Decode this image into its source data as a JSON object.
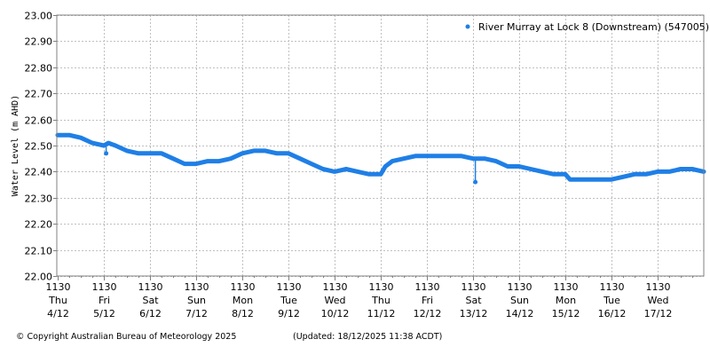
{
  "chart_data": {
    "type": "scatter",
    "title": "",
    "xlabel": "",
    "ylabel": "Water Level (m AHD)",
    "ylim": [
      22.0,
      23.0
    ],
    "yticks": [
      "23.00",
      "22.90",
      "22.80",
      "22.70",
      "22.60",
      "22.50",
      "22.40",
      "22.30",
      "22.20",
      "22.10",
      "22.00"
    ],
    "grid": true,
    "legend_position": "top-right",
    "x_ticks": [
      {
        "time": "1130",
        "day": "Thu",
        "date": "4/12"
      },
      {
        "time": "1130",
        "day": "Fri",
        "date": "5/12"
      },
      {
        "time": "1130",
        "day": "Sat",
        "date": "6/12"
      },
      {
        "time": "1130",
        "day": "Sun",
        "date": "7/12"
      },
      {
        "time": "1130",
        "day": "Mon",
        "date": "8/12"
      },
      {
        "time": "1130",
        "day": "Tue",
        "date": "9/12"
      },
      {
        "time": "1130",
        "day": "Wed",
        "date": "10/12"
      },
      {
        "time": "1130",
        "day": "Thu",
        "date": "11/12"
      },
      {
        "time": "1130",
        "day": "Fri",
        "date": "12/12"
      },
      {
        "time": "1130",
        "day": "Sat",
        "date": "13/12"
      },
      {
        "time": "1130",
        "day": "Sun",
        "date": "14/12"
      },
      {
        "time": "1130",
        "day": "Mon",
        "date": "15/12"
      },
      {
        "time": "1130",
        "day": "Tue",
        "date": "16/12"
      },
      {
        "time": "1130",
        "day": "Wed",
        "date": "17/12"
      }
    ],
    "series": [
      {
        "name": "River Murray at Lock 8 (Downstream) (547005)",
        "color": "#1f7fe6",
        "x_days": [
          0.0,
          0.25,
          0.5,
          0.75,
          1.0,
          1.1,
          1.25,
          1.5,
          1.75,
          2.0,
          2.25,
          2.5,
          2.75,
          3.0,
          3.25,
          3.5,
          3.75,
          4.0,
          4.25,
          4.5,
          4.75,
          5.0,
          5.25,
          5.5,
          5.75,
          6.0,
          6.25,
          6.5,
          6.75,
          7.0,
          7.1,
          7.25,
          7.5,
          7.75,
          8.0,
          8.25,
          8.5,
          8.75,
          9.0,
          9.05,
          9.25,
          9.5,
          9.75,
          10.0,
          10.25,
          10.5,
          10.75,
          11.0,
          11.1,
          11.25,
          11.5,
          11.75,
          12.0,
          12.25,
          12.5,
          12.75,
          13.0,
          13.25,
          13.5,
          13.75,
          14.0
        ],
        "values": [
          22.54,
          22.54,
          22.53,
          22.51,
          22.5,
          22.51,
          22.5,
          22.48,
          22.47,
          22.47,
          22.47,
          22.45,
          22.43,
          22.43,
          22.44,
          22.44,
          22.45,
          22.47,
          22.48,
          22.48,
          22.47,
          22.47,
          22.45,
          22.43,
          22.41,
          22.4,
          22.41,
          22.4,
          22.39,
          22.39,
          22.42,
          22.44,
          22.45,
          22.46,
          22.46,
          22.46,
          22.46,
          22.46,
          22.45,
          22.45,
          22.45,
          22.44,
          22.42,
          22.42,
          22.41,
          22.4,
          22.39,
          22.39,
          22.37,
          22.37,
          22.37,
          22.37,
          22.37,
          22.38,
          22.39,
          22.39,
          22.4,
          22.4,
          22.41,
          22.41,
          22.4
        ],
        "outliers": [
          {
            "x_days": 1.05,
            "value": 22.47
          },
          {
            "x_days": 9.05,
            "value": 22.36
          }
        ]
      }
    ]
  },
  "legend": {
    "label": "River Murray at Lock 8 (Downstream) (547005)"
  },
  "footer": {
    "copyright": "© Copyright Australian Bureau of Meteorology 2025",
    "updated": "(Updated: 18/12/2025 11:38 ACDT)"
  }
}
